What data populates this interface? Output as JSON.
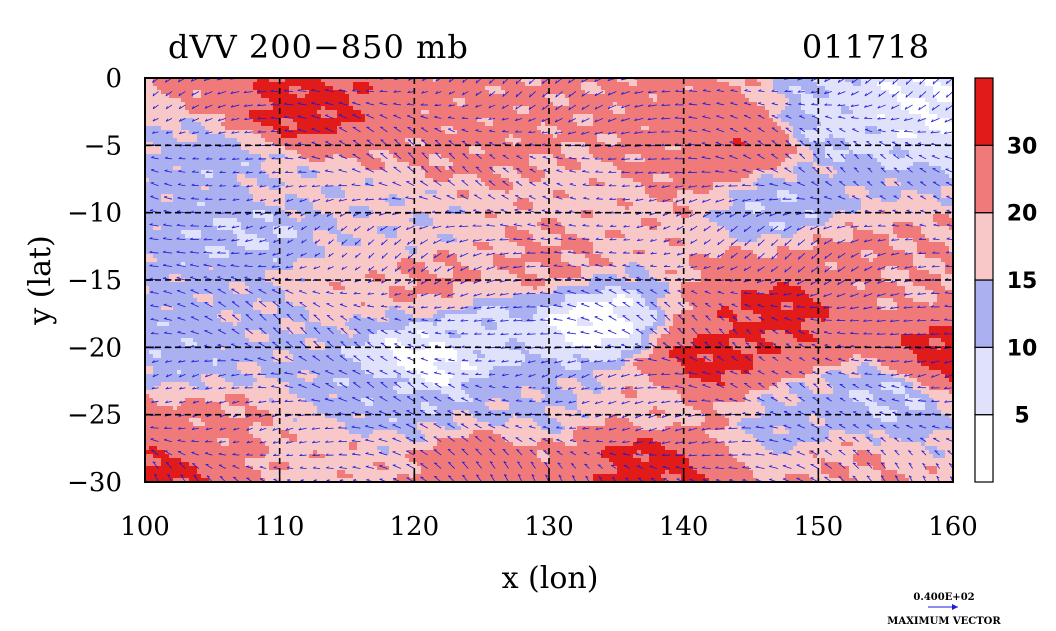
{
  "chart_data": {
    "type": "heatmap",
    "title": "dVV 200−850 mb",
    "date_label": "011718",
    "xlabel": "x (lon)",
    "ylabel": "y (lat)",
    "xlim": [
      100,
      160
    ],
    "ylim": [
      -30,
      0
    ],
    "x_ticks": [
      100,
      110,
      120,
      130,
      140,
      150,
      160
    ],
    "y_ticks": [
      0,
      -5,
      -10,
      -15,
      -20,
      -25,
      -30
    ],
    "x_tick_labels": [
      "100",
      "110",
      "120",
      "130",
      "140",
      "150",
      "160"
    ],
    "y_tick_labels": [
      "0",
      "−5",
      "−10",
      "−15",
      "−20",
      "−25",
      "−30"
    ],
    "grid": true,
    "grid_x": [
      110,
      120,
      130,
      140,
      150
    ],
    "grid_y": [
      -5,
      -10,
      -15,
      -20,
      -25
    ],
    "colorbar": {
      "levels": [
        0,
        5,
        10,
        15,
        20,
        30,
        35
      ],
      "labels": [
        "5",
        "10",
        "15",
        "20",
        "30"
      ],
      "colors": [
        "#ffffff",
        "#e0e1fb",
        "#aab0f0",
        "#f8c8c8",
        "#f07a7a",
        "#e11a1a"
      ]
    },
    "vector_color": "#1a1adb",
    "reference_vector": {
      "value_label": "0.400E+02",
      "caption": "MAXIMUM VECTOR"
    },
    "features": [
      {
        "lon": 111.5,
        "lat": -2.6,
        "value": 32
      },
      {
        "lon": 106.0,
        "lat": -6.5,
        "value": 12
      },
      {
        "lon": 125.0,
        "lat": -4.5,
        "value": 22
      },
      {
        "lon": 140.0,
        "lat": -5.5,
        "value": 22
      },
      {
        "lon": 143.5,
        "lat": -5.0,
        "value": 28
      },
      {
        "lon": 152.0,
        "lat": -3.0,
        "value": 8
      },
      {
        "lon": 158.0,
        "lat": -2.0,
        "value": 5
      },
      {
        "lon": 108.0,
        "lat": -11.5,
        "value": 10
      },
      {
        "lon": 120.0,
        "lat": -11.0,
        "value": 16
      },
      {
        "lon": 114.0,
        "lat": -15.5,
        "value": 18
      },
      {
        "lon": 121.0,
        "lat": -15.2,
        "value": 21
      },
      {
        "lon": 130.0,
        "lat": -13.5,
        "value": 21
      },
      {
        "lon": 133.5,
        "lat": -18.2,
        "value": 3
      },
      {
        "lon": 124.5,
        "lat": -19.2,
        "value": 8
      },
      {
        "lon": 120.8,
        "lat": -21.0,
        "value": 3
      },
      {
        "lon": 103.0,
        "lat": -20.0,
        "value": 12
      },
      {
        "lon": 108.0,
        "lat": -17.5,
        "value": 14
      },
      {
        "lon": 142.0,
        "lat": -21.0,
        "value": 32
      },
      {
        "lon": 147.5,
        "lat": -17.0,
        "value": 32
      },
      {
        "lon": 151.0,
        "lat": -14.0,
        "value": 22
      },
      {
        "lon": 157.5,
        "lat": -15.5,
        "value": 20
      },
      {
        "lon": 159.5,
        "lat": -20.5,
        "value": 32
      },
      {
        "lon": 155.0,
        "lat": -24.0,
        "value": 10
      },
      {
        "lon": 148.0,
        "lat": -25.5,
        "value": 13
      },
      {
        "lon": 138.0,
        "lat": -24.5,
        "value": 18
      },
      {
        "lon": 128.5,
        "lat": -24.0,
        "value": 14
      },
      {
        "lon": 118.0,
        "lat": -23.5,
        "value": 12
      },
      {
        "lon": 104.0,
        "lat": -26.5,
        "value": 22
      },
      {
        "lon": 101.0,
        "lat": -29.5,
        "value": 32
      },
      {
        "lon": 137.5,
        "lat": -28.5,
        "value": 32
      },
      {
        "lon": 125.0,
        "lat": -29.0,
        "value": 24
      },
      {
        "lon": 113.0,
        "lat": -28.0,
        "value": 18
      },
      {
        "lon": 152.0,
        "lat": -29.0,
        "value": 20
      },
      {
        "lon": 110.0,
        "lat": -8.0,
        "value": 16
      },
      {
        "lon": 133.0,
        "lat": -9.0,
        "value": 18
      },
      {
        "lon": 147.0,
        "lat": -9.5,
        "value": 11
      }
    ]
  }
}
